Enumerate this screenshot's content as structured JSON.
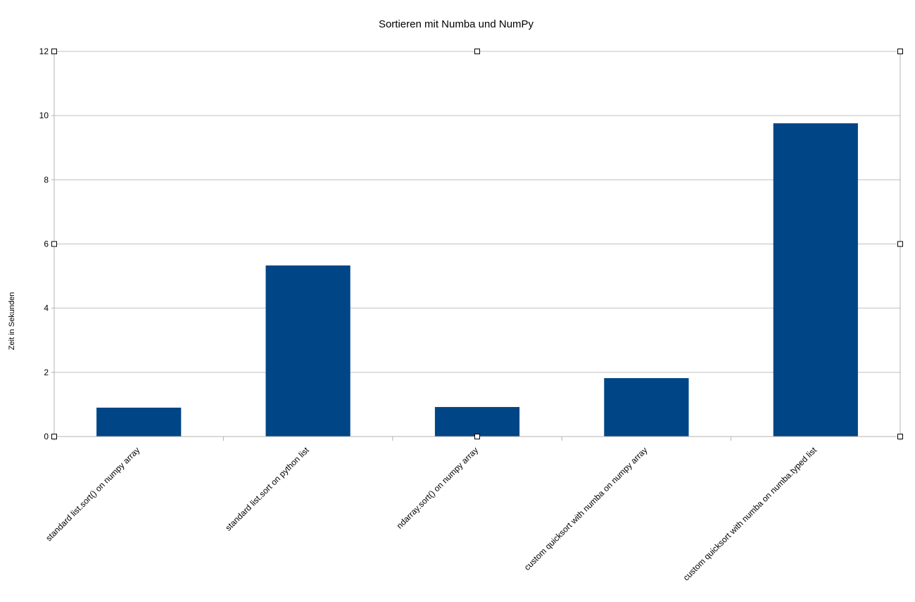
{
  "chart_data": {
    "type": "bar",
    "title": "Sortieren mit Numba und NumPy",
    "xlabel": "",
    "ylabel": "Zeit in Sekunden",
    "categories": [
      "standard list.sort() on numpy array",
      "standard list.sort on python list",
      "ndarray.sort() on numpy array",
      "custom quicksort with numba on numpy array",
      "custom quicksort with numba on numba.typed list"
    ],
    "values": [
      0.9,
      5.33,
      0.92,
      1.82,
      9.76
    ],
    "ylim": [
      0,
      12
    ],
    "yticks": [
      0,
      2,
      4,
      6,
      8,
      10,
      12
    ],
    "grid": true,
    "legend": "none",
    "colors": {
      "bar": "#004586"
    }
  }
}
